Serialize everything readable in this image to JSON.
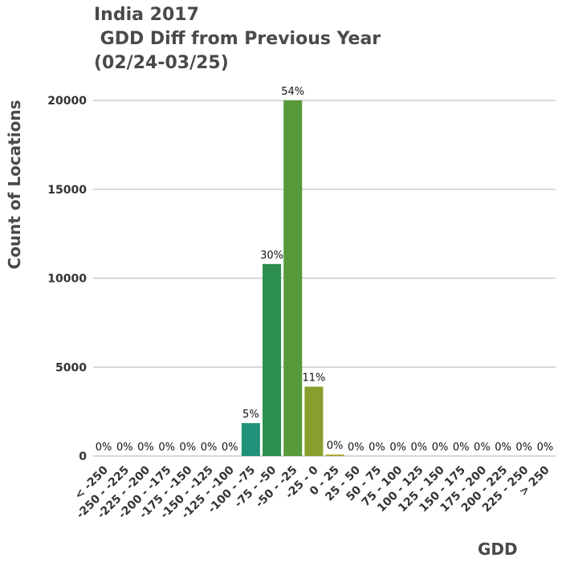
{
  "chart_data": {
    "type": "bar",
    "title_lines": [
      "India 2017",
      " GDD Diff from Previous Year",
      "(02/24-03/25)"
    ],
    "xlabel": "GDD",
    "ylabel": "Count of Locations",
    "ylim": [
      0,
      20500
    ],
    "yticks": [
      0,
      5000,
      10000,
      15000,
      20000
    ],
    "grid": true,
    "categories": [
      "< -250",
      "-250 - -225",
      "-225 - -200",
      "-200 - -175",
      "-175 - -150",
      "-150 - -125",
      "-125 - -100",
      "-100 - -75",
      "-75 - -50",
      "-50 - -25",
      "-25 - 0",
      "0 - 25",
      "25 - 50",
      "50 - 75",
      "75 - 100",
      "100 - 125",
      "125 - 150",
      "150 - 175",
      "175 - 200",
      "200 - 225",
      "225 - 250",
      "> 250"
    ],
    "values": [
      0,
      0,
      0,
      0,
      0,
      0,
      0,
      1850,
      10800,
      20000,
      3900,
      80,
      0,
      0,
      0,
      0,
      0,
      0,
      0,
      0,
      0,
      0
    ],
    "labels": [
      "0%",
      "0%",
      "0%",
      "0%",
      "0%",
      "0%",
      "0%",
      "5%",
      "30%",
      "54%",
      "11%",
      "0%",
      "0%",
      "0%",
      "0%",
      "0%",
      "0%",
      "0%",
      "0%",
      "0%",
      "0%",
      "0%"
    ],
    "colors": [
      "#1e8f7a",
      "#1e8f7a",
      "#1e8f7a",
      "#1e8f7a",
      "#1e8f7a",
      "#1e8f7a",
      "#1e8f7a",
      "#21917a",
      "#2d8f4e",
      "#58993a",
      "#879f2c",
      "#a6a023",
      "#a6a023",
      "#a6a023",
      "#a6a023",
      "#a6a023",
      "#a6a023",
      "#a6a023",
      "#a6a023",
      "#a6a023",
      "#a6a023",
      "#a6a023"
    ]
  }
}
